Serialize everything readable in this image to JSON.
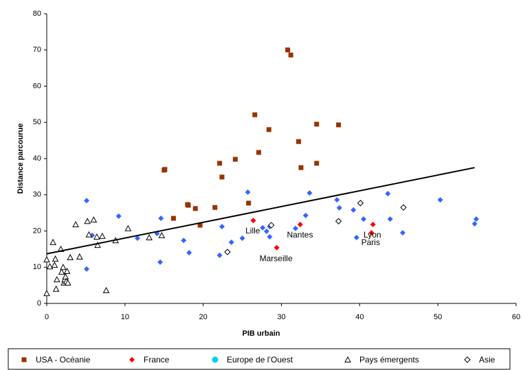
{
  "chart_data": {
    "type": "scatter",
    "xlabel": "PIB urbain",
    "ylabel": "Distance parcourue",
    "xlim": [
      0,
      60
    ],
    "xticks": [
      0,
      10,
      20,
      30,
      40,
      50,
      60
    ],
    "ylim": [
      0,
      80
    ],
    "yticks": [
      0,
      10,
      20,
      30,
      40,
      50,
      60,
      70,
      80
    ],
    "grid": false,
    "legend": "bottom",
    "series": [
      {
        "name": "USA - Océanie",
        "color": "#993300",
        "marker": "square",
        "hollow": false,
        "x": [
          15.1,
          15.0,
          16.2,
          18.0,
          18.1,
          19.0,
          19.6,
          21.5,
          22.1,
          22.4,
          24.1,
          25.8,
          26.6,
          27.1,
          28.4,
          30.8,
          31.2,
          32.2,
          32.5,
          34.5,
          34.5,
          37.3
        ],
        "values": [
          37.0,
          36.8,
          23.5,
          27.3,
          27.1,
          26.2,
          21.6,
          26.5,
          38.7,
          34.9,
          39.8,
          27.7,
          52.1,
          41.7,
          48.0,
          70.0,
          68.6,
          44.7,
          37.5,
          49.5,
          38.7,
          49.3
        ]
      },
      {
        "name": "France",
        "color": "#ff0000",
        "marker": "diamond",
        "hollow": false,
        "x": [
          26.4,
          29.4,
          32.4,
          41.5,
          41.7
        ],
        "values": [
          22.9,
          15.4,
          21.8,
          19.5,
          21.8
        ]
      },
      {
        "name": "Europe de l’Ouest",
        "color": "#3366ff",
        "marker": "diamond",
        "hollow": false,
        "legend_color": "#00ccff",
        "legend_marker": "circle",
        "x": [
          5.1,
          5.1,
          5.8,
          9.2,
          11.6,
          14.1,
          14.6,
          14.5,
          17.5,
          18.2,
          22.1,
          22.4,
          23.6,
          25.0,
          25.7,
          27.6,
          28.1,
          28.5,
          28.5,
          31.8,
          33.1,
          33.6,
          37.1,
          37.4,
          39.2,
          39.6,
          40.5,
          43.6,
          43.9,
          45.5,
          50.3,
          54.7,
          54.9
        ],
        "values": [
          28.4,
          9.5,
          18.8,
          24.1,
          18.0,
          19.3,
          23.5,
          11.4,
          17.4,
          14.0,
          13.3,
          21.2,
          16.9,
          18.0,
          30.7,
          20.9,
          19.9,
          18.4,
          21.2,
          20.7,
          24.3,
          30.5,
          28.6,
          26.4,
          25.8,
          18.2,
          23.3,
          30.3,
          23.3,
          19.5,
          28.6,
          22.0,
          23.3
        ]
      },
      {
        "name": "Pays émergents",
        "color": "#000000",
        "marker": "triangle",
        "hollow": true,
        "x": [
          0,
          0,
          0.4,
          0.8,
          1.0,
          1.1,
          1.2,
          1.3,
          1.8,
          1.9,
          2.1,
          2.2,
          2.3,
          2.4,
          2.5,
          2.6,
          2.7,
          3.0,
          3.7,
          4.2,
          5.2,
          5.4,
          6.0,
          6.5,
          6.4,
          7.1,
          7.6,
          8.8,
          10.4,
          13.1,
          14.7
        ],
        "values": [
          2.8,
          12.1,
          10.2,
          16.9,
          10.6,
          12.3,
          4.0,
          6.6,
          15.0,
          8.7,
          10.0,
          5.7,
          6.6,
          7.4,
          6.1,
          8.9,
          5.7,
          12.7,
          21.8,
          12.9,
          22.7,
          19.0,
          23.1,
          16.1,
          18.4,
          18.6,
          3.6,
          17.4,
          20.7,
          18.2,
          18.8
        ]
      },
      {
        "name": "Asie",
        "color": "#000000",
        "marker": "diamond",
        "hollow": true,
        "x": [
          23.1,
          28.7,
          37.3,
          40.1,
          45.6
        ],
        "values": [
          14.2,
          21.6,
          22.7,
          27.7,
          26.5
        ]
      }
    ],
    "trendline": {
      "color": "#000000",
      "x": [
        0,
        54.7
      ],
      "values": [
        13.7,
        37.5
      ]
    },
    "annotations": [
      {
        "text": "Lille",
        "x": 25.4,
        "y": 19.9
      },
      {
        "text": "Nantes",
        "x": 30.7,
        "y": 18.8
      },
      {
        "text": "Lyon",
        "x": 40.5,
        "y": 18.8
      },
      {
        "text": "Paris",
        "x": 40.2,
        "y": 16.7
      },
      {
        "text": "Marseille",
        "x": 27.2,
        "y": 12.3
      }
    ]
  }
}
